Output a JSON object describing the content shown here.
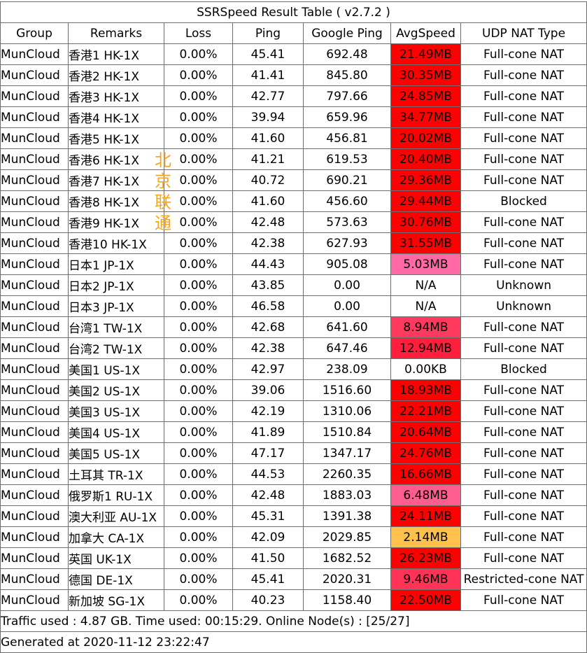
{
  "title": "SSRSpeed Result Table ( v2.7.2 )",
  "headers": [
    "Group",
    "Remarks",
    "Loss",
    "Ping",
    "Google Ping",
    "AvgSpeed",
    "UDP NAT Type"
  ],
  "colors": {
    "high": "#ff0000",
    "mid_high": "#ff3355",
    "mid": "#ff6aa6",
    "low": "#ffc04c",
    "none": "#ffffff"
  },
  "rows": [
    {
      "group": "MunCloud",
      "remarks": "香港1 HK-1X",
      "loss": "0.00%",
      "ping": "45.41",
      "google_ping": "692.48",
      "speed": "21.49MB",
      "speed_color": "#ff0000",
      "nat": "Full-cone NAT"
    },
    {
      "group": "MunCloud",
      "remarks": "香港2 HK-1X",
      "loss": "0.00%",
      "ping": "41.41",
      "google_ping": "845.80",
      "speed": "30.35MB",
      "speed_color": "#ff0000",
      "nat": "Full-cone NAT"
    },
    {
      "group": "MunCloud",
      "remarks": "香港3 HK-1X",
      "loss": "0.00%",
      "ping": "42.77",
      "google_ping": "797.66",
      "speed": "24.85MB",
      "speed_color": "#ff0000",
      "nat": "Full-cone NAT"
    },
    {
      "group": "MunCloud",
      "remarks": "香港4 HK-1X",
      "loss": "0.00%",
      "ping": "39.94",
      "google_ping": "659.96",
      "speed": "34.77MB",
      "speed_color": "#ff0000",
      "nat": "Full-cone NAT"
    },
    {
      "group": "MunCloud",
      "remarks": "香港5 HK-1X",
      "loss": "0.00%",
      "ping": "41.60",
      "google_ping": "456.81",
      "speed": "20.02MB",
      "speed_color": "#ff0000",
      "nat": "Full-cone NAT"
    },
    {
      "group": "MunCloud",
      "remarks": "香港6 HK-1X",
      "loss": "0.00%",
      "ping": "41.21",
      "google_ping": "619.53",
      "speed": "20.40MB",
      "speed_color": "#ff0000",
      "nat": "Full-cone NAT"
    },
    {
      "group": "MunCloud",
      "remarks": "香港7 HK-1X",
      "loss": "0.00%",
      "ping": "40.72",
      "google_ping": "690.21",
      "speed": "29.36MB",
      "speed_color": "#ff0000",
      "nat": "Full-cone NAT"
    },
    {
      "group": "MunCloud",
      "remarks": "香港8 HK-1X",
      "loss": "0.00%",
      "ping": "41.60",
      "google_ping": "456.60",
      "speed": "29.44MB",
      "speed_color": "#ff0000",
      "nat": "Blocked"
    },
    {
      "group": "MunCloud",
      "remarks": "香港9 HK-1X",
      "loss": "0.00%",
      "ping": "42.48",
      "google_ping": "573.63",
      "speed": "30.76MB",
      "speed_color": "#ff0000",
      "nat": "Full-cone NAT"
    },
    {
      "group": "MunCloud",
      "remarks": "香港10 HK-1X",
      "loss": "0.00%",
      "ping": "42.38",
      "google_ping": "627.93",
      "speed": "31.55MB",
      "speed_color": "#ff0000",
      "nat": "Full-cone NAT"
    },
    {
      "group": "MunCloud",
      "remarks": "日本1 JP-1X",
      "loss": "0.00%",
      "ping": "44.43",
      "google_ping": "905.08",
      "speed": "5.03MB",
      "speed_color": "#ff6aa6",
      "nat": "Full-cone NAT"
    },
    {
      "group": "MunCloud",
      "remarks": "日本2 JP-1X",
      "loss": "0.00%",
      "ping": "43.85",
      "google_ping": "0.00",
      "speed": "N/A",
      "speed_color": "#ffffff",
      "nat": "Unknown"
    },
    {
      "group": "MunCloud",
      "remarks": "日本3 JP-1X",
      "loss": "0.00%",
      "ping": "46.58",
      "google_ping": "0.00",
      "speed": "N/A",
      "speed_color": "#ffffff",
      "nat": "Unknown"
    },
    {
      "group": "MunCloud",
      "remarks": "台湾1 TW-1X",
      "loss": "0.00%",
      "ping": "42.68",
      "google_ping": "641.60",
      "speed": "8.94MB",
      "speed_color": "#ff3a5e",
      "nat": "Full-cone NAT"
    },
    {
      "group": "MunCloud",
      "remarks": "台湾2 TW-1X",
      "loss": "0.00%",
      "ping": "42.38",
      "google_ping": "647.46",
      "speed": "12.94MB",
      "speed_color": "#ff1f3c",
      "nat": "Full-cone NAT"
    },
    {
      "group": "MunCloud",
      "remarks": "美国1 US-1X",
      "loss": "0.00%",
      "ping": "42.97",
      "google_ping": "238.09",
      "speed": "0.00KB",
      "speed_color": "#ffffff",
      "nat": "Blocked"
    },
    {
      "group": "MunCloud",
      "remarks": "美国2 US-1X",
      "loss": "0.00%",
      "ping": "39.06",
      "google_ping": "1516.60",
      "speed": "18.93MB",
      "speed_color": "#ff0000",
      "nat": "Full-cone NAT"
    },
    {
      "group": "MunCloud",
      "remarks": "美国3 US-1X",
      "loss": "0.00%",
      "ping": "42.19",
      "google_ping": "1310.06",
      "speed": "22.21MB",
      "speed_color": "#ff0000",
      "nat": "Full-cone NAT"
    },
    {
      "group": "MunCloud",
      "remarks": "美国4 US-1X",
      "loss": "0.00%",
      "ping": "41.89",
      "google_ping": "1510.84",
      "speed": "20.64MB",
      "speed_color": "#ff0000",
      "nat": "Full-cone NAT"
    },
    {
      "group": "MunCloud",
      "remarks": "美国5 US-1X",
      "loss": "0.00%",
      "ping": "47.17",
      "google_ping": "1347.17",
      "speed": "24.76MB",
      "speed_color": "#ff0000",
      "nat": "Full-cone NAT"
    },
    {
      "group": "MunCloud",
      "remarks": "土耳其 TR-1X",
      "loss": "0.00%",
      "ping": "44.53",
      "google_ping": "2260.35",
      "speed": "16.66MB",
      "speed_color": "#ff0000",
      "nat": "Full-cone NAT"
    },
    {
      "group": "MunCloud",
      "remarks": "俄罗斯1 RU-1X",
      "loss": "0.00%",
      "ping": "42.48",
      "google_ping": "1883.03",
      "speed": "6.48MB",
      "speed_color": "#ff5c90",
      "nat": "Full-cone NAT"
    },
    {
      "group": "MunCloud",
      "remarks": "澳大利亚 AU-1X",
      "loss": "0.00%",
      "ping": "45.31",
      "google_ping": "1391.38",
      "speed": "24.11MB",
      "speed_color": "#ff0000",
      "nat": "Full-cone NAT"
    },
    {
      "group": "MunCloud",
      "remarks": "加拿大 CA-1X",
      "loss": "0.00%",
      "ping": "42.09",
      "google_ping": "2029.85",
      "speed": "2.14MB",
      "speed_color": "#ffc04c",
      "nat": "Full-cone NAT"
    },
    {
      "group": "MunCloud",
      "remarks": "英国 UK-1X",
      "loss": "0.00%",
      "ping": "41.50",
      "google_ping": "1682.52",
      "speed": "26.23MB",
      "speed_color": "#ff0000",
      "nat": "Full-cone NAT"
    },
    {
      "group": "MunCloud",
      "remarks": "德国 DE-1X",
      "loss": "0.00%",
      "ping": "45.41",
      "google_ping": "2020.31",
      "speed": "9.46MB",
      "speed_color": "#ff3355",
      "nat": "Restricted-cone NAT"
    },
    {
      "group": "MunCloud",
      "remarks": "新加坡 SG-1X",
      "loss": "0.00%",
      "ping": "40.23",
      "google_ping": "1158.40",
      "speed": "22.50MB",
      "speed_color": "#ff0000",
      "nat": "Full-cone NAT"
    }
  ],
  "footer": {
    "traffic": "Traffic used : 4.87 GB. Time used: 00:15:29. Online Node(s) : [25/27]",
    "generated": "Generated at 2020-11-12 23:22:47"
  },
  "watermark": "北京联通"
}
